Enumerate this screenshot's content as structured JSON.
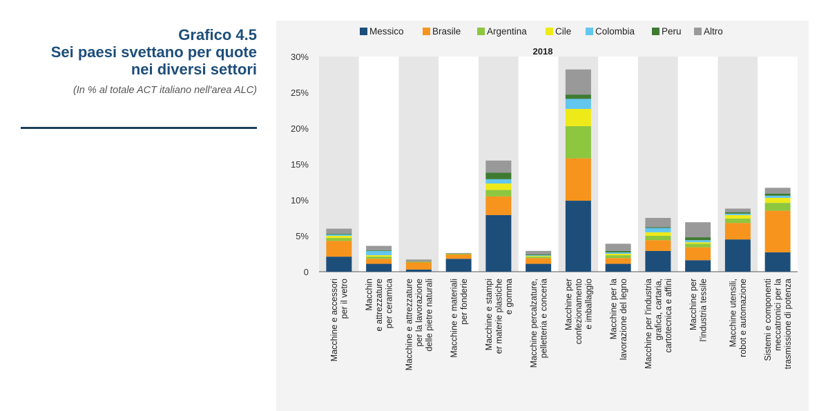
{
  "heading": {
    "label": "Grafico 4.5",
    "title_line1": "Sei paesi svettano per quote",
    "title_line2": "nei diversi settori",
    "subtitle": "(In % al totale ACT italiano nell'area ALC)"
  },
  "chart_data": {
    "type": "bar",
    "stacked": true,
    "title": "2018",
    "legend_position": "top",
    "y_ticks": [
      "0",
      "5%",
      "10%",
      "15%",
      "20%",
      "25%",
      "30%"
    ],
    "ylim": [
      0,
      30
    ],
    "categories": [
      [
        "Macchine e accessori",
        "per il vetro"
      ],
      [
        "Macchin",
        "e attrezzature",
        "per ceramica"
      ],
      [
        "Macchine e attrezzature",
        "per la lavorazione",
        "delle pietre naturali"
      ],
      [
        "Macchine e materiali",
        "per fonderie"
      ],
      [
        "Macchine e stampi",
        "er materie plastiche",
        "e gomma"
      ],
      [
        "Macchine percalzature,",
        "pelletteria e conceria"
      ],
      [
        "Macchine per",
        "confezionamento",
        "e imballaggio"
      ],
      [
        "Macchine per la",
        "lavorazione del legno"
      ],
      [
        "Macchine per l'industria",
        "grafica, cartaria,",
        "cartotecnica e affini"
      ],
      [
        "Macchine per",
        "l'industria tessile"
      ],
      [
        "Macchine utensili,",
        "robot e automazione"
      ],
      [
        "Sistemi e componenti",
        "meccatronici per la",
        "trasmissione di potenza"
      ]
    ],
    "series": [
      {
        "name": "Messico",
        "color": "#1d4e7a",
        "values": [
          2.1,
          1.1,
          0.3,
          1.8,
          7.9,
          1.1,
          9.9,
          1.1,
          2.9,
          1.6,
          4.5,
          2.7
        ]
      },
      {
        "name": "Brasile",
        "color": "#f7941d",
        "values": [
          2.2,
          0.7,
          1.0,
          0.6,
          2.6,
          0.8,
          5.9,
          0.8,
          1.5,
          1.8,
          2.3,
          5.8
        ]
      },
      {
        "name": "Argentina",
        "color": "#8dc63f",
        "values": [
          0.4,
          0.3,
          0.1,
          0.1,
          0.9,
          0.2,
          4.5,
          0.4,
          0.6,
          0.5,
          0.6,
          1.1
        ]
      },
      {
        "name": "Cile",
        "color": "#eeea19",
        "values": [
          0.3,
          0.2,
          0.0,
          0.0,
          0.9,
          0.1,
          2.4,
          0.2,
          0.5,
          0.2,
          0.5,
          0.7
        ]
      },
      {
        "name": "Colombia",
        "color": "#62c6ef",
        "values": [
          0.2,
          0.6,
          0.0,
          0.0,
          0.6,
          0.1,
          1.4,
          0.2,
          0.6,
          0.3,
          0.2,
          0.3
        ]
      },
      {
        "name": "Peru",
        "color": "#3f7a31",
        "values": [
          0.1,
          0.1,
          0.0,
          0.0,
          0.9,
          0.1,
          0.6,
          0.2,
          0.1,
          0.4,
          0.2,
          0.3
        ]
      },
      {
        "name": "Altro",
        "color": "#999999",
        "values": [
          0.7,
          0.6,
          0.3,
          0.1,
          1.7,
          0.5,
          3.5,
          1.0,
          1.3,
          2.1,
          0.5,
          0.8
        ]
      }
    ]
  }
}
